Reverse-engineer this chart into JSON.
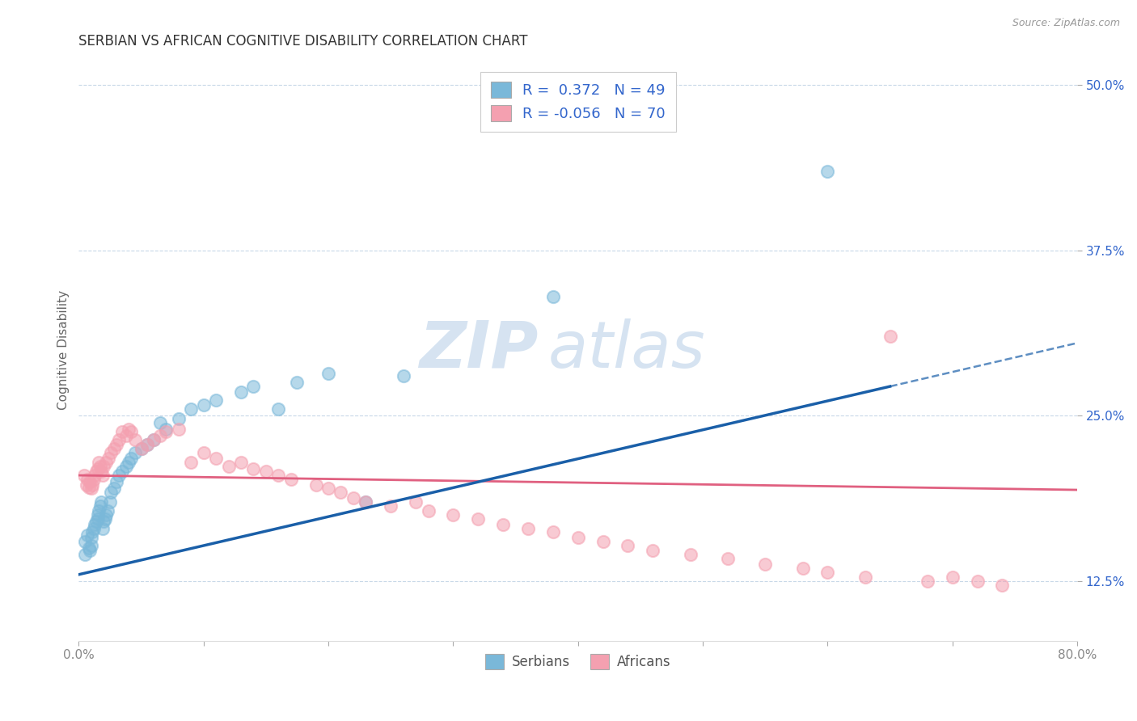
{
  "title": "SERBIAN VS AFRICAN COGNITIVE DISABILITY CORRELATION CHART",
  "source": "Source: ZipAtlas.com",
  "xlabel": "",
  "ylabel": "Cognitive Disability",
  "xlim": [
    0.0,
    0.8
  ],
  "ylim": [
    0.08,
    0.52
  ],
  "xticks": [
    0.0,
    0.1,
    0.2,
    0.3,
    0.4,
    0.5,
    0.6,
    0.7,
    0.8
  ],
  "xticklabels": [
    "0.0%",
    "",
    "",
    "",
    "",
    "",
    "",
    "",
    "80.0%"
  ],
  "yticks": [
    0.125,
    0.25,
    0.375,
    0.5
  ],
  "yticklabels": [
    "12.5%",
    "25.0%",
    "37.5%",
    "50.0%"
  ],
  "R_serbian": 0.372,
  "N_serbian": 49,
  "R_african": -0.056,
  "N_african": 70,
  "serbian_color": "#7ab8d9",
  "african_color": "#f4a0b0",
  "trend_serbian_color": "#1a5fa8",
  "trend_african_color": "#e06080",
  "text_color": "#3366cc",
  "background_color": "#ffffff",
  "grid_color": "#c8d8e8",
  "serbian_x": [
    0.005,
    0.005,
    0.007,
    0.008,
    0.009,
    0.01,
    0.01,
    0.011,
    0.012,
    0.013,
    0.014,
    0.015,
    0.015,
    0.016,
    0.017,
    0.018,
    0.019,
    0.02,
    0.021,
    0.022,
    0.023,
    0.025,
    0.026,
    0.028,
    0.03,
    0.032,
    0.035,
    0.038,
    0.04,
    0.042,
    0.045,
    0.05,
    0.055,
    0.06,
    0.065,
    0.07,
    0.08,
    0.09,
    0.1,
    0.11,
    0.13,
    0.14,
    0.16,
    0.175,
    0.2,
    0.23,
    0.26,
    0.38,
    0.6
  ],
  "serbian_y": [
    0.155,
    0.145,
    0.16,
    0.15,
    0.148,
    0.152,
    0.158,
    0.162,
    0.165,
    0.168,
    0.17,
    0.172,
    0.175,
    0.178,
    0.182,
    0.185,
    0.165,
    0.17,
    0.172,
    0.175,
    0.178,
    0.185,
    0.192,
    0.195,
    0.2,
    0.205,
    0.208,
    0.212,
    0.215,
    0.218,
    0.222,
    0.225,
    0.228,
    0.232,
    0.245,
    0.24,
    0.248,
    0.255,
    0.258,
    0.262,
    0.268,
    0.272,
    0.255,
    0.275,
    0.282,
    0.185,
    0.28,
    0.34,
    0.435
  ],
  "african_x": [
    0.004,
    0.006,
    0.007,
    0.008,
    0.009,
    0.01,
    0.011,
    0.012,
    0.013,
    0.014,
    0.015,
    0.016,
    0.017,
    0.018,
    0.019,
    0.02,
    0.022,
    0.024,
    0.026,
    0.028,
    0.03,
    0.032,
    0.035,
    0.038,
    0.04,
    0.042,
    0.045,
    0.05,
    0.055,
    0.06,
    0.065,
    0.07,
    0.08,
    0.09,
    0.1,
    0.11,
    0.12,
    0.13,
    0.14,
    0.15,
    0.16,
    0.17,
    0.19,
    0.2,
    0.21,
    0.22,
    0.23,
    0.25,
    0.27,
    0.28,
    0.3,
    0.32,
    0.34,
    0.36,
    0.38,
    0.4,
    0.42,
    0.44,
    0.46,
    0.49,
    0.52,
    0.55,
    0.58,
    0.6,
    0.63,
    0.65,
    0.68,
    0.7,
    0.72,
    0.74
  ],
  "african_y": [
    0.205,
    0.198,
    0.202,
    0.196,
    0.2,
    0.195,
    0.198,
    0.202,
    0.205,
    0.208,
    0.21,
    0.215,
    0.212,
    0.208,
    0.205,
    0.212,
    0.215,
    0.218,
    0.222,
    0.225,
    0.228,
    0.232,
    0.238,
    0.235,
    0.24,
    0.238,
    0.232,
    0.225,
    0.228,
    0.232,
    0.235,
    0.238,
    0.24,
    0.215,
    0.222,
    0.218,
    0.212,
    0.215,
    0.21,
    0.208,
    0.205,
    0.202,
    0.198,
    0.195,
    0.192,
    0.188,
    0.185,
    0.182,
    0.185,
    0.178,
    0.175,
    0.172,
    0.168,
    0.165,
    0.162,
    0.158,
    0.155,
    0.152,
    0.148,
    0.145,
    0.142,
    0.138,
    0.135,
    0.132,
    0.128,
    0.31,
    0.125,
    0.128,
    0.125,
    0.122
  ],
  "watermark_zip": "ZIP",
  "watermark_atlas": "atlas",
  "title_fontsize": 12,
  "label_fontsize": 11,
  "tick_fontsize": 11,
  "legend_fontsize": 13
}
